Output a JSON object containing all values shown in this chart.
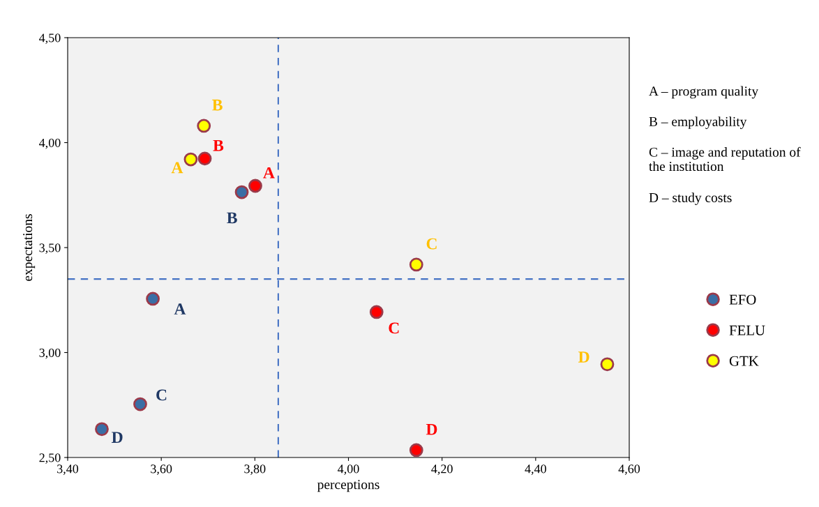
{
  "chart_data": {
    "type": "scatter",
    "xlabel": "perceptions",
    "ylabel": "expectations",
    "xlim": [
      3.4,
      4.6
    ],
    "ylim": [
      2.5,
      4.5
    ],
    "xticks": [
      {
        "value": 3.4,
        "label": "3,40"
      },
      {
        "value": 3.6,
        "label": "3,60"
      },
      {
        "value": 3.8,
        "label": "3,80"
      },
      {
        "value": 4.0,
        "label": "4,00"
      },
      {
        "value": 4.2,
        "label": "4,20"
      },
      {
        "value": 4.4,
        "label": "4,40"
      },
      {
        "value": 4.6,
        "label": "4,60"
      }
    ],
    "yticks": [
      {
        "value": 2.5,
        "label": "2,50"
      },
      {
        "value": 3.0,
        "label": "3,00"
      },
      {
        "value": 3.5,
        "label": "3,50"
      },
      {
        "value": 4.0,
        "label": "4,00"
      },
      {
        "value": 4.5,
        "label": "4,50"
      }
    ],
    "marker": "circle",
    "grid": false,
    "legend": "right",
    "series": [
      {
        "name": "EFO",
        "color": "#3a6ea5",
        "x": [
          3.582,
          3.772,
          3.555,
          3.473
        ],
        "values": [
          3.256,
          3.764,
          2.754,
          2.635
        ]
      },
      {
        "name": "FELU",
        "color": "#ff0000",
        "x": [
          3.801,
          3.693,
          4.06,
          4.145
        ],
        "values": [
          3.794,
          3.924,
          3.193,
          2.535
        ]
      },
      {
        "name": "GTK",
        "color": "#ffff00",
        "x": [
          3.663,
          3.691,
          4.145,
          4.553
        ],
        "values": [
          3.92,
          4.08,
          3.419,
          2.944
        ]
      }
    ],
    "ref_lines": [
      {
        "axis": "x",
        "value": 3.85,
        "color": "#4472c4",
        "line_style": "dashed"
      },
      {
        "axis": "y",
        "value": 3.35,
        "color": "#4472c4",
        "line_style": "dashed"
      }
    ],
    "annotations": [
      {
        "text": "A",
        "x": 3.582,
        "y": 3.256
      },
      {
        "text": "B",
        "x": 3.772,
        "y": 3.764
      },
      {
        "text": "C",
        "x": 3.555,
        "y": 2.754
      },
      {
        "text": "D",
        "x": 3.473,
        "y": 2.635
      },
      {
        "text": "A",
        "x": 3.801,
        "y": 3.794
      },
      {
        "text": "B",
        "x": 3.693,
        "y": 3.924
      },
      {
        "text": "C",
        "x": 4.06,
        "y": 3.193
      },
      {
        "text": "D",
        "x": 4.145,
        "y": 2.535
      },
      {
        "text": "A",
        "x": 3.663,
        "y": 3.92
      },
      {
        "text": "B",
        "x": 3.691,
        "y": 4.08
      },
      {
        "text": "C",
        "x": 4.145,
        "y": 3.419
      },
      {
        "text": "D",
        "x": 4.553,
        "y": 2.944
      },
      "A – program quality",
      "B – employability",
      "C – image and reputation of the institution",
      "D – study costs"
    ]
  }
}
